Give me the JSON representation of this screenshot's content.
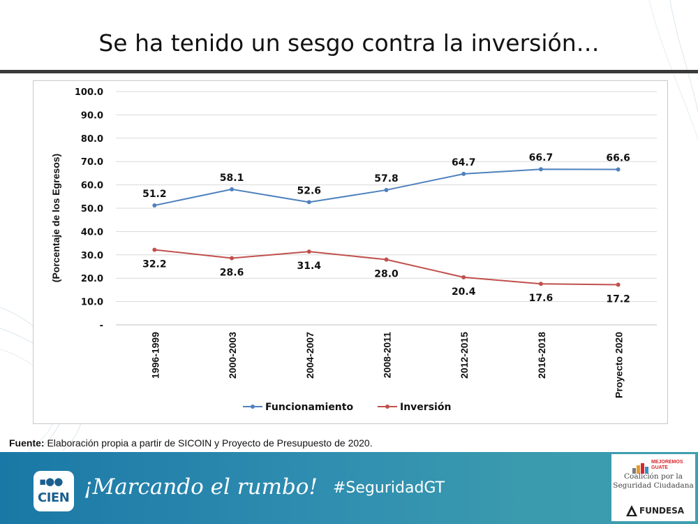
{
  "slide": {
    "title": "Se ha tenido un sesgo contra la inversión…",
    "source_label": "Fuente:",
    "source_text": " Elaboración propia a partir de SICOIN y Proyecto de Presupuesto de 2020."
  },
  "chart_data": {
    "type": "line",
    "title": "",
    "xlabel": "",
    "ylabel": "(Porcentaje de los Egresos)",
    "ylim": [
      0,
      100
    ],
    "yticks": [
      "-",
      "10.0",
      "20.0",
      "30.0",
      "40.0",
      "50.0",
      "60.0",
      "70.0",
      "80.0",
      "90.0",
      "100.0"
    ],
    "grid": true,
    "legend_position": "bottom",
    "categories": [
      "1996-1999",
      "2000-2003",
      "2004-2007",
      "2008-2011",
      "2012-2015",
      "2016-2018",
      "Proyecto 2020"
    ],
    "series": [
      {
        "name": "Funcionamiento",
        "color": "#4f81bd",
        "values": [
          51.2,
          58.1,
          52.6,
          57.8,
          64.7,
          66.7,
          66.6
        ],
        "labels": [
          "51.2",
          "58.1",
          "52.6",
          "57.8",
          "64.7",
          "66.7",
          "66.6"
        ]
      },
      {
        "name": "Inversión",
        "color": "#c0504d",
        "values": [
          32.2,
          28.6,
          31.4,
          28.0,
          20.4,
          17.6,
          17.2
        ],
        "labels": [
          "32.2",
          "28.6",
          "31.4",
          "28.0",
          "20.4",
          "17.6",
          "17.2"
        ]
      }
    ]
  },
  "footer": {
    "logo_text": "CIEN",
    "slogan": "¡Marcando el rumbo!",
    "hashtag": "#SeguridadGT",
    "partner_top_line1": "MEJOREMOS",
    "partner_top_line2": "GUATE",
    "partner_coalition": "Coalición por la Seguridad Ciudadana",
    "partner_bottom": "FUNDESA"
  }
}
